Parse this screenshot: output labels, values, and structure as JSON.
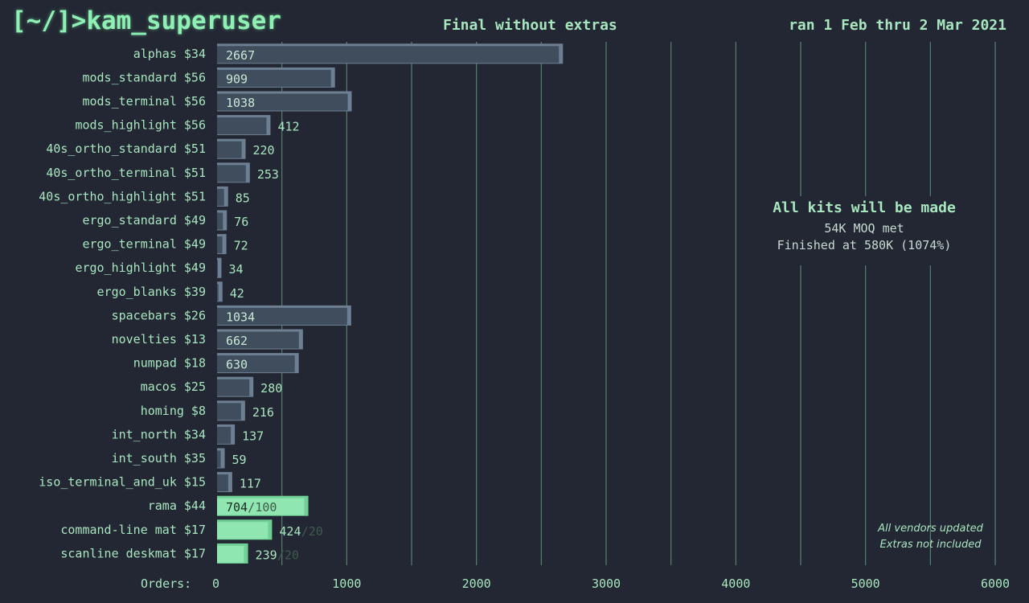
{
  "header": {
    "brand": "[~/]>kam_superuser",
    "subtitle": "Final without extras",
    "date_range": "ran 1 Feb thru 2 Mar 2021"
  },
  "callout": {
    "headline": "All kits will be made",
    "line1": "54K MOQ met",
    "line2": "Finished at 580K (1074%)"
  },
  "notes": [
    "All vendors updated",
    "Extras not included"
  ],
  "colors": {
    "background": "#232733",
    "keycap_bar": "#3f4d5c",
    "accessory_bar": "#8fe6b0",
    "text": "#a8e6bf",
    "gridline": "#5f8f7a"
  },
  "chart_data": {
    "type": "bar",
    "orientation": "horizontal",
    "xlabel": "Orders:",
    "xlim": [
      0,
      6000
    ],
    "xticks": [
      0,
      1000,
      2000,
      3000,
      4000,
      5000,
      6000
    ],
    "grid": true,
    "categories": [
      "alphas $34",
      "mods_standard $56",
      "mods_terminal $56",
      "mods_highlight $56",
      "40s_ortho_standard $51",
      "40s_ortho_terminal $51",
      "40s_ortho_highlight $51",
      "ergo_standard $49",
      "ergo_terminal $49",
      "ergo_highlight $49",
      "ergo_blanks $39",
      "spacebars $26",
      "novelties $13",
      "numpad $18",
      "macos $25",
      "homing  $8",
      "int_north $34",
      "int_south $35",
      "iso_terminal_and_uk $15",
      "rama $44",
      "command-line mat $17",
      "scanline deskmat $17"
    ],
    "values": [
      2667,
      909,
      1038,
      412,
      220,
      253,
      85,
      76,
      72,
      34,
      42,
      1034,
      662,
      630,
      280,
      216,
      137,
      59,
      117,
      704,
      424,
      239
    ],
    "targets": [
      "",
      "",
      "",
      "",
      "",
      "",
      "",
      "",
      "",
      "",
      "",
      "",
      "",
      "",
      "",
      "",
      "",
      "",
      "",
      "/100",
      "/20",
      "/20"
    ],
    "accessory": [
      false,
      false,
      false,
      false,
      false,
      false,
      false,
      false,
      false,
      false,
      false,
      false,
      false,
      false,
      false,
      false,
      false,
      false,
      false,
      true,
      true,
      true
    ]
  }
}
